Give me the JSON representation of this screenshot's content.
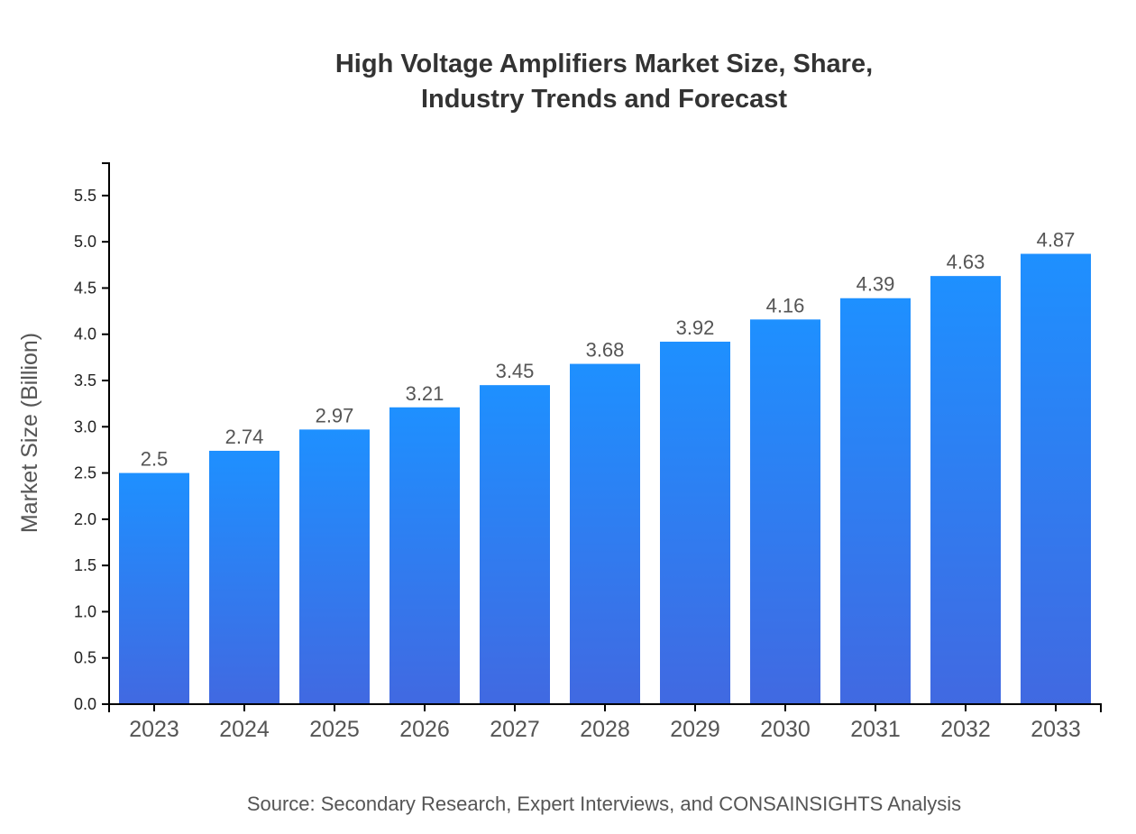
{
  "chart_data": {
    "type": "bar",
    "title_lines": [
      "High Voltage Amplifiers Market Size, Share,",
      "Industry Trends and Forecast"
    ],
    "xlabel": "",
    "ylabel": "Market Size (Billion)",
    "categories": [
      "2023",
      "2024",
      "2025",
      "2026",
      "2027",
      "2028",
      "2029",
      "2030",
      "2031",
      "2032",
      "2033"
    ],
    "values": [
      2.5,
      2.74,
      2.97,
      3.21,
      3.45,
      3.68,
      3.92,
      4.16,
      4.39,
      4.63,
      4.87
    ],
    "data_labels": [
      "2.5",
      "2.74",
      "2.97",
      "3.21",
      "3.45",
      "3.68",
      "3.92",
      "4.16",
      "4.39",
      "4.63",
      "4.87"
    ],
    "ylim": [
      0,
      5.85
    ],
    "yticks": [
      "0.0",
      "0.5",
      "1.0",
      "1.5",
      "2.0",
      "2.5",
      "3.0",
      "3.5",
      "4.0",
      "4.5",
      "5.0",
      "5.5"
    ],
    "grid": false,
    "legend": "none",
    "colors": {
      "bar_top": "#1e90ff",
      "bar_bottom": "#4169e1",
      "text": "#555555",
      "title": "#333333"
    },
    "source": "Source: Secondary Research, Expert Interviews, and CONSAINSIGHTS Analysis"
  }
}
